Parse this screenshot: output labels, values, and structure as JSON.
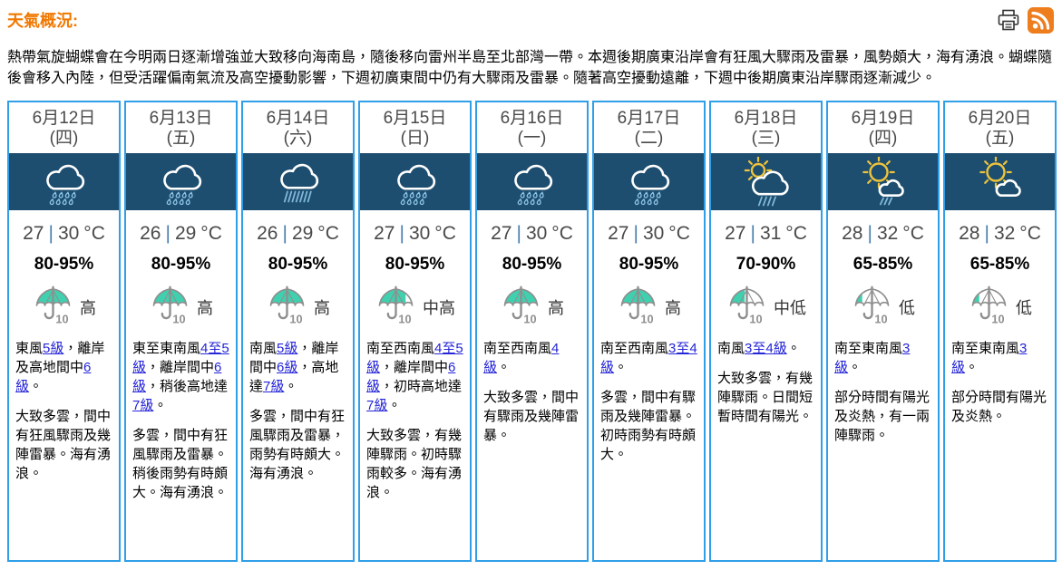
{
  "header": {
    "title": "天氣概況:",
    "summary": "熱帶氣旋蝴蝶會在今明兩日逐漸增強並大致移向海南島，隨後移向雷州半島至北部灣一帶。本週後期廣東沿岸會有狂風大驟雨及雷暴，風勢頗大，海有湧浪。蝴蝶隨後會移入內陸，但受活躍偏南氣流及高空擾動影響，下週初廣東間中仍有大驟雨及雷暴。隨著高空擾動遠離，下週中後期廣東沿岸驟雨逐漸減少。",
    "icons": [
      {
        "name": "print-icon"
      },
      {
        "name": "rss-icon"
      }
    ]
  },
  "labels": {
    "temp_separator": "|"
  },
  "colors": {
    "accent_orange": "#f07800",
    "card_border": "#2f9fe8",
    "icon_band_bg": "#1e4e6f",
    "link_blue": "#2525d8",
    "psr_teal": "#3fd1af",
    "sun_yellow": "#eec33c",
    "rain_blue": "#8ec6e8",
    "rain_streak_blue": "#7fb8d9",
    "rss_orange": "#ee7d1d",
    "text_dark": "#4a4a4a"
  },
  "psr_fill_fractions": {
    "high": 1,
    "medium-high": 0.73,
    "medium-low": 0.45,
    "low": 0.27
  },
  "days": [
    {
      "date": "6月12日",
      "weekday": "(四)",
      "icon": "rain",
      "temp_low": "27",
      "temp_high": "30",
      "temp_unit": "°C",
      "humidity": "80-95%",
      "psr_level": "high",
      "psr_label": "高",
      "wind_parts": [
        {
          "text": "東風"
        },
        {
          "text": "5級",
          "link": true
        },
        {
          "text": "，離岸及高地間中"
        },
        {
          "text": "6級",
          "link": true
        },
        {
          "text": "。"
        }
      ],
      "weather": "大致多雲，間中有狂風驟雨及幾陣雷暴。海有湧浪。"
    },
    {
      "date": "6月13日",
      "weekday": "(五)",
      "icon": "rain",
      "temp_low": "26",
      "temp_high": "29",
      "temp_unit": "°C",
      "humidity": "80-95%",
      "psr_level": "high",
      "psr_label": "高",
      "wind_parts": [
        {
          "text": "東至東南風"
        },
        {
          "text": "4至5級",
          "link": true
        },
        {
          "text": "，離岸間中"
        },
        {
          "text": "6級",
          "link": true
        },
        {
          "text": "，稍後高地達"
        },
        {
          "text": "7級",
          "link": true
        },
        {
          "text": "。"
        }
      ],
      "weather": "多雲，間中有狂風驟雨及雷暴。稍後雨勢有時頗大。海有湧浪。"
    },
    {
      "date": "6月14日",
      "weekday": "(六)",
      "icon": "heavy-rain",
      "temp_low": "26",
      "temp_high": "29",
      "temp_unit": "°C",
      "humidity": "80-95%",
      "psr_level": "high",
      "psr_label": "高",
      "wind_parts": [
        {
          "text": "南風"
        },
        {
          "text": "5級",
          "link": true
        },
        {
          "text": "，離岸間中"
        },
        {
          "text": "6級",
          "link": true
        },
        {
          "text": "，高地達"
        },
        {
          "text": "7級",
          "link": true
        },
        {
          "text": "。"
        }
      ],
      "weather": "多雲，間中有狂風驟雨及雷暴，雨勢有時頗大。海有湧浪。"
    },
    {
      "date": "6月15日",
      "weekday": "(日)",
      "icon": "rain",
      "temp_low": "27",
      "temp_high": "30",
      "temp_unit": "°C",
      "humidity": "80-95%",
      "psr_level": "medium-high",
      "psr_label": "中高",
      "wind_parts": [
        {
          "text": "南至西南風"
        },
        {
          "text": "4至5級",
          "link": true
        },
        {
          "text": "，離岸間中"
        },
        {
          "text": "6級",
          "link": true
        },
        {
          "text": "，初時高地達"
        },
        {
          "text": "7級",
          "link": true
        },
        {
          "text": "。"
        }
      ],
      "weather": "大致多雲，有幾陣驟雨。初時驟雨較多。海有湧浪。"
    },
    {
      "date": "6月16日",
      "weekday": "(一)",
      "icon": "rain",
      "temp_low": "27",
      "temp_high": "30",
      "temp_unit": "°C",
      "humidity": "80-95%",
      "psr_level": "high",
      "psr_label": "高",
      "wind_parts": [
        {
          "text": "南至西南風"
        },
        {
          "text": "4級",
          "link": true
        },
        {
          "text": "。"
        }
      ],
      "weather": "大致多雲，間中有驟雨及幾陣雷暴。"
    },
    {
      "date": "6月17日",
      "weekday": "(二)",
      "icon": "rain",
      "temp_low": "27",
      "temp_high": "30",
      "temp_unit": "°C",
      "humidity": "80-95%",
      "psr_level": "high",
      "psr_label": "高",
      "wind_parts": [
        {
          "text": "南至西南風"
        },
        {
          "text": "3至4級",
          "link": true
        },
        {
          "text": "。"
        }
      ],
      "weather": "多雲，間中有驟雨及幾陣雷暴。初時雨勢有時頗大。"
    },
    {
      "date": "6月18日",
      "weekday": "(三)",
      "icon": "sun-shower",
      "temp_low": "27",
      "temp_high": "31",
      "temp_unit": "°C",
      "humidity": "70-90%",
      "psr_level": "medium-low",
      "psr_label": "中低",
      "wind_parts": [
        {
          "text": "南風"
        },
        {
          "text": "3至4級",
          "link": true
        },
        {
          "text": "。"
        }
      ],
      "weather": "大致多雲，有幾陣驟雨。日間短暫時間有陽光。"
    },
    {
      "date": "6月19日",
      "weekday": "(四)",
      "icon": "sun-rain",
      "temp_low": "28",
      "temp_high": "32",
      "temp_unit": "°C",
      "humidity": "65-85%",
      "psr_level": "low",
      "psr_label": "低",
      "wind_parts": [
        {
          "text": "南至東南風"
        },
        {
          "text": "3級",
          "link": true
        },
        {
          "text": "。"
        }
      ],
      "weather": "部分時間有陽光及炎熱，有一兩陣驟雨。"
    },
    {
      "date": "6月20日",
      "weekday": "(五)",
      "icon": "sun-cloud",
      "temp_low": "28",
      "temp_high": "32",
      "temp_unit": "°C",
      "humidity": "65-85%",
      "psr_level": "low",
      "psr_label": "低",
      "wind_parts": [
        {
          "text": "南至東南風"
        },
        {
          "text": "3級",
          "link": true
        },
        {
          "text": "。"
        }
      ],
      "weather": "部分時間有陽光及炎熱。"
    }
  ]
}
